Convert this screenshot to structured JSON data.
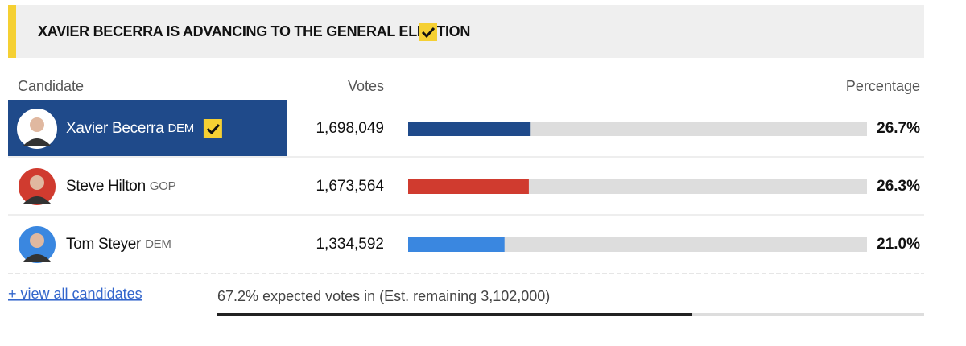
{
  "banner": {
    "text": "XAVIER BECERRA IS ADVANCING TO THE GENERAL ELECTION"
  },
  "headers": {
    "candidate": "Candidate",
    "votes": "Votes",
    "percentage": "Percentage"
  },
  "rows": [
    {
      "name": "Xavier Becerra",
      "party": "DEM",
      "votes": "1,698,049",
      "pct": {
        "value": 26.7,
        "label": "26.7%"
      },
      "color": "#1f4a8a",
      "winner": true
    },
    {
      "name": "Steve Hilton",
      "party": "GOP",
      "votes": "1,673,564",
      "pct": {
        "value": 26.3,
        "label": "26.3%"
      },
      "color": "#d03b2f",
      "winner": false
    },
    {
      "name": "Tom Steyer",
      "party": "DEM",
      "votes": "1,334,592",
      "pct": {
        "value": 21.0,
        "label": "21.0%"
      },
      "color": "#3a87e0",
      "winner": false
    }
  ],
  "footer": {
    "link": "+ view all candidates",
    "expected": {
      "pct": {
        "value": 67.2,
        "label": "67.2%"
      },
      "text": "expected votes in (Est. remaining 3,102,000)"
    }
  }
}
